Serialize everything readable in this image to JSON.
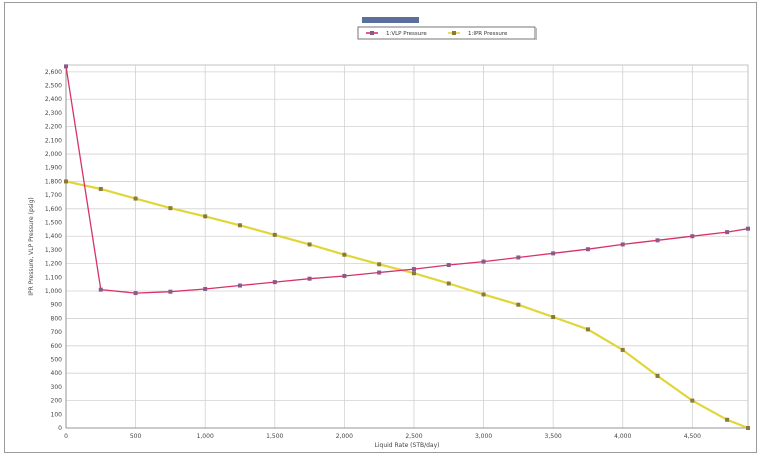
{
  "chart_data": {
    "type": "line",
    "title": "",
    "xlabel": "Liquid Rate (STB/day)",
    "ylabel": "IPR Pressure, VLP Pressure (psig)",
    "xlim": [
      0,
      4900
    ],
    "ylim": [
      0,
      2650
    ],
    "x_ticks": [
      0,
      500,
      1000,
      1500,
      2000,
      2500,
      3000,
      3500,
      4000,
      4500
    ],
    "x_tick_labels": [
      "0",
      "500",
      "1,000",
      "1,500",
      "2,000",
      "2,500",
      "3,000",
      "3,500",
      "4,000",
      "4,500"
    ],
    "y_ticks": [
      0,
      100,
      200,
      300,
      400,
      500,
      600,
      700,
      800,
      900,
      1000,
      1100,
      1200,
      1300,
      1400,
      1500,
      1600,
      1700,
      1800,
      1900,
      2000,
      2100,
      2200,
      2300,
      2400,
      2500,
      2600
    ],
    "y_tick_labels": [
      "0",
      "100",
      "200",
      "300",
      "400",
      "500",
      "600",
      "700",
      "800",
      "900",
      "1,000",
      "1,100",
      "1,200",
      "1,300",
      "1,400",
      "1,500",
      "1,600",
      "1,700",
      "1,800",
      "1,900",
      "2,000",
      "2,100",
      "2,200",
      "2,300",
      "2,400",
      "2,500",
      "2,600"
    ],
    "grid": true,
    "legend_position": "top-center",
    "series": [
      {
        "name": "1:VLP Pressure",
        "color": "#d8326a",
        "marker_color": "#8a5a8a",
        "x": [
          0,
          250,
          500,
          750,
          1000,
          1250,
          1500,
          1750,
          2000,
          2250,
          2500,
          2750,
          3000,
          3250,
          3500,
          3750,
          4000,
          4250,
          4500,
          4750,
          4900
        ],
        "y": [
          2640,
          1010,
          985,
          995,
          1015,
          1040,
          1065,
          1090,
          1110,
          1135,
          1160,
          1190,
          1215,
          1245,
          1275,
          1305,
          1340,
          1370,
          1400,
          1430,
          1455
        ]
      },
      {
        "name": "1:IPR Pressure",
        "color": "#e0d63a",
        "marker_color": "#8a7a3a",
        "x": [
          0,
          250,
          500,
          750,
          1000,
          1250,
          1500,
          1750,
          2000,
          2250,
          2500,
          2750,
          3000,
          3250,
          3500,
          3750,
          4000,
          4250,
          4500,
          4750,
          4900
        ],
        "y": [
          1800,
          1745,
          1675,
          1605,
          1545,
          1480,
          1410,
          1340,
          1265,
          1195,
          1130,
          1055,
          975,
          900,
          810,
          720,
          570,
          380,
          200,
          60,
          0
        ]
      }
    ]
  }
}
